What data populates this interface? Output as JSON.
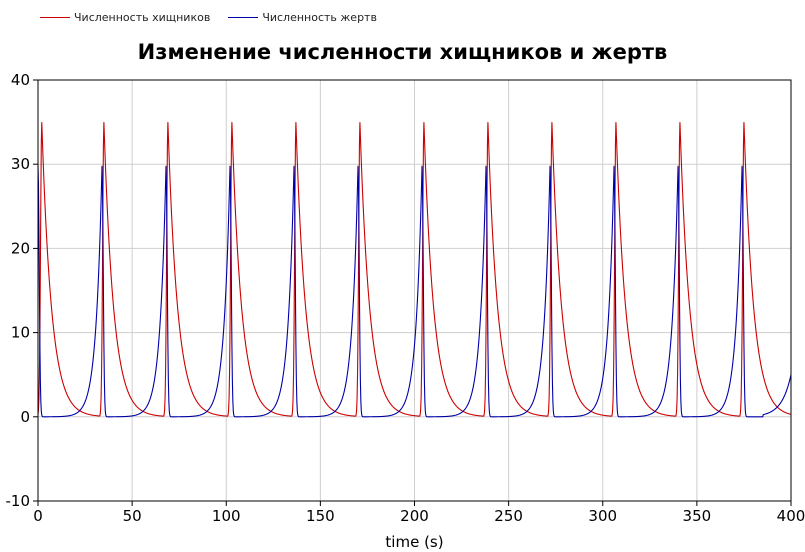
{
  "legend": {
    "predators": "Численность хищников",
    "prey": "Численность жертв"
  },
  "chart_data": {
    "type": "line",
    "title": "Изменение численности хищников и жертв",
    "xlabel": "time (s)",
    "ylabel": "",
    "xlim": [
      0,
      400
    ],
    "ylim": [
      -10,
      40
    ],
    "xticks": [
      0,
      50,
      100,
      150,
      200,
      250,
      300,
      350,
      400
    ],
    "yticks": [
      -10,
      0,
      10,
      20,
      30,
      40
    ],
    "grid": true,
    "legend_position": "top-left",
    "series": [
      {
        "name": "Численность хищников",
        "color": "#cc0000",
        "peaks": [
          2,
          35,
          69,
          103,
          137,
          171,
          205,
          239,
          273,
          307,
          341,
          375
        ],
        "peak_value": 35,
        "min_value": 0
      },
      {
        "name": "Численность жертв",
        "color": "#0000aa",
        "peaks": [
          0,
          34,
          68,
          102,
          136,
          170,
          204,
          238,
          272,
          306,
          340,
          374
        ],
        "peak_value": 29.8,
        "min_value": 0,
        "end_value": 5
      }
    ]
  }
}
